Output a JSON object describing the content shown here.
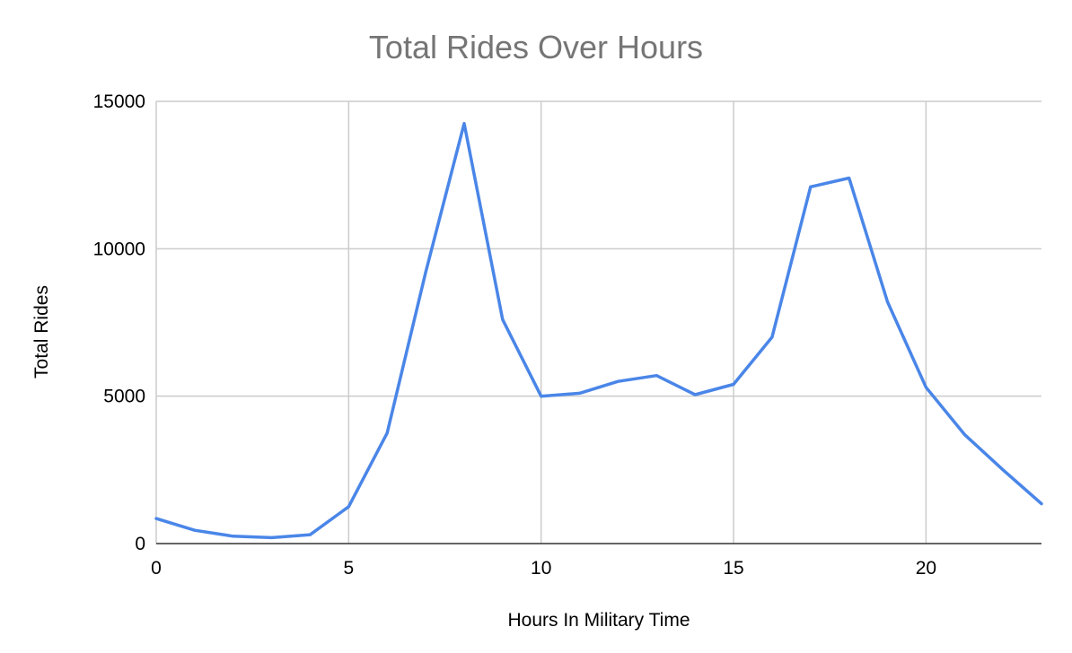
{
  "chart_data": {
    "type": "line",
    "title": "Total Rides Over Hours",
    "xlabel": "Hours In Military Time",
    "ylabel": "Total Rides",
    "xlim": [
      0,
      23
    ],
    "ylim": [
      0,
      15000
    ],
    "x_ticks": [
      0,
      5,
      10,
      15,
      20
    ],
    "y_ticks": [
      0,
      5000,
      10000,
      15000
    ],
    "x_tick_labels": [
      "0",
      "5",
      "10",
      "15",
      "20"
    ],
    "y_tick_labels": [
      "0",
      "5000",
      "10000",
      "15000"
    ],
    "grid": true,
    "legend": "none",
    "series": [
      {
        "color": "#4a86e8",
        "x": [
          0,
          1,
          2,
          3,
          4,
          5,
          6,
          7,
          8,
          9,
          10,
          11,
          12,
          13,
          14,
          15,
          16,
          17,
          18,
          19,
          20,
          21,
          22,
          23
        ],
        "y": [
          850,
          450,
          250,
          200,
          300,
          1250,
          3750,
          9200,
          14250,
          7600,
          5000,
          5100,
          5500,
          5700,
          5050,
          5400,
          7000,
          12100,
          12400,
          8200,
          5300,
          3700,
          2500,
          1350
        ]
      }
    ]
  }
}
